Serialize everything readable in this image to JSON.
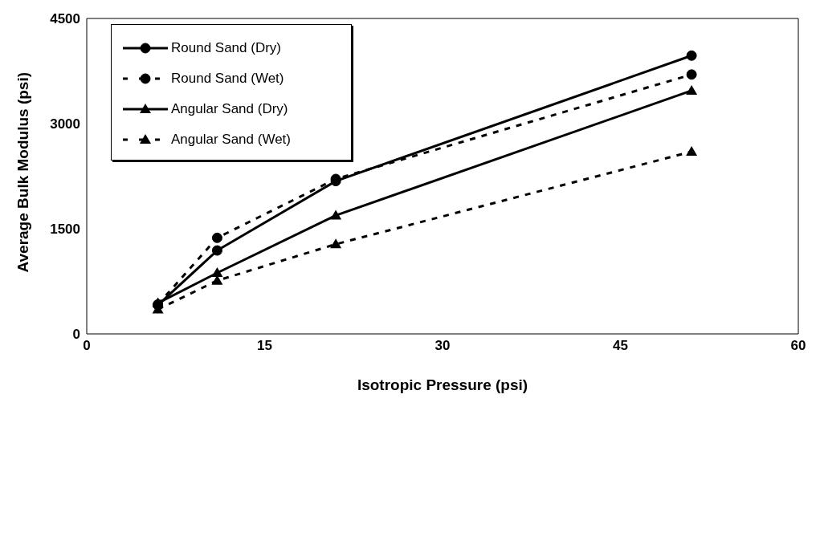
{
  "chart_data": {
    "type": "line",
    "xlabel": "Isotropic Pressure (psi)",
    "ylabel": "Average Bulk Modulus (psi)",
    "x": [
      6,
      11,
      21,
      51
    ],
    "series": [
      {
        "name": "Round Sand (Dry)",
        "color": "#000000",
        "values": [
          410,
          1190,
          2180,
          3970
        ],
        "marker": "circle",
        "line_style": "solid"
      },
      {
        "name": "Round Sand (Wet)",
        "color": "#000000",
        "values": [
          420,
          1370,
          2210,
          3700
        ],
        "marker": "circle",
        "line_style": "dashed"
      },
      {
        "name": "Angular Sand (Dry)",
        "color": "#000000",
        "values": [
          440,
          870,
          1690,
          3470
        ],
        "marker": "triangle",
        "line_style": "solid"
      },
      {
        "name": "Angular Sand (Wet)",
        "color": "#000000",
        "values": [
          350,
          760,
          1280,
          2600
        ],
        "marker": "triangle",
        "line_style": "dashed"
      }
    ],
    "xlim": [
      0,
      60
    ],
    "xticks": [
      0,
      15,
      30,
      45,
      60
    ],
    "ylim": [
      0,
      4500
    ],
    "yticks": [
      0,
      1500,
      3000,
      4500
    ],
    "grid": false,
    "legend": "top left"
  }
}
